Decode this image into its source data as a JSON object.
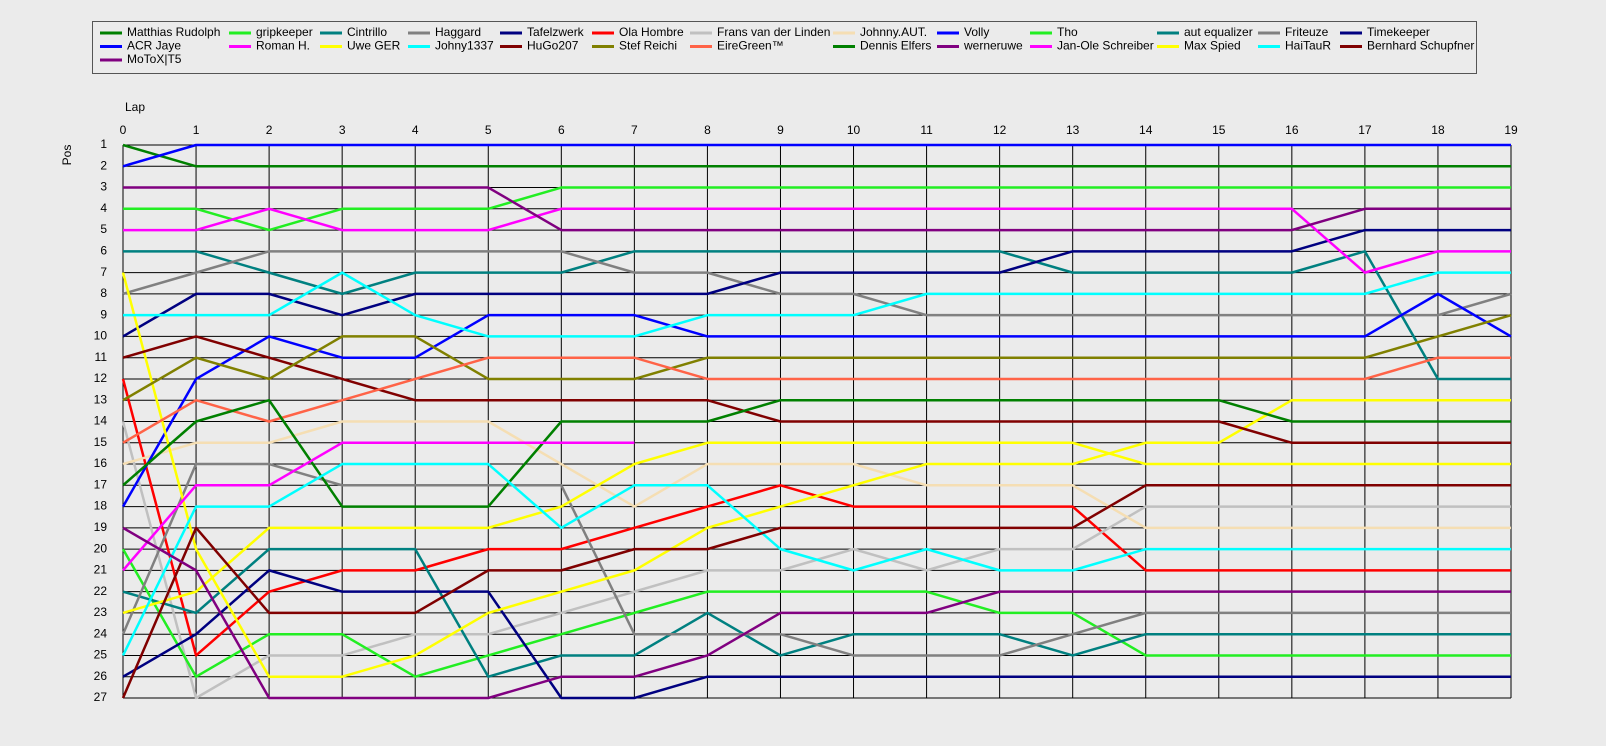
{
  "chart_data": {
    "type": "line",
    "x_label": "Lap",
    "y_label": "Pos",
    "x": [
      0,
      1,
      2,
      3,
      4,
      5,
      6,
      7,
      8,
      9,
      10,
      11,
      12,
      13,
      14,
      15,
      16,
      17,
      18,
      19
    ],
    "xlim": [
      0,
      19
    ],
    "xticks": [
      0,
      1,
      2,
      3,
      4,
      5,
      6,
      7,
      8,
      9,
      10,
      11,
      12,
      13,
      14,
      15,
      16,
      17,
      18,
      19
    ],
    "ylim": [
      27,
      1
    ],
    "yticks": [
      1,
      2,
      3,
      4,
      5,
      6,
      7,
      8,
      9,
      10,
      11,
      12,
      13,
      14,
      15,
      16,
      17,
      18,
      19,
      20,
      21,
      22,
      23,
      24,
      25,
      26,
      27
    ],
    "grid": true,
    "legend": "top",
    "series": [
      {
        "name": "Matthias  Rudolph",
        "color": "#008000",
        "values": [
          1,
          2,
          2,
          2,
          2,
          2,
          2,
          2,
          2,
          2,
          2,
          2,
          2,
          2,
          2,
          2,
          2,
          2,
          2,
          2
        ]
      },
      {
        "name": "gripkeeper",
        "color": "#22ee22",
        "values": [
          4,
          4,
          5,
          4,
          4,
          4,
          3,
          3,
          3,
          3,
          3,
          3,
          3,
          3,
          3,
          3,
          3,
          3,
          3,
          3
        ]
      },
      {
        "name": "Cintrillo",
        "color": "#008080",
        "values": [
          6,
          6,
          7,
          8,
          7,
          7,
          7,
          6,
          6,
          6,
          6,
          6,
          6,
          7,
          7,
          7,
          7,
          6,
          12,
          12
        ]
      },
      {
        "name": "Haggard",
        "color": "#808080",
        "values": [
          8,
          7,
          6,
          6,
          6,
          6,
          6,
          7,
          7,
          8,
          8,
          9,
          9,
          9,
          9,
          9,
          9,
          9,
          9,
          8
        ]
      },
      {
        "name": "Tafelzwerk",
        "color": "#000080",
        "values": [
          10,
          8,
          8,
          9,
          8,
          8,
          8,
          8,
          8,
          7,
          7,
          7,
          7,
          6,
          6,
          6,
          6,
          5,
          5,
          5
        ]
      },
      {
        "name": "Ola Hombre",
        "color": "#ff0000",
        "values": [
          12,
          25,
          22,
          21,
          21,
          20,
          20,
          19,
          18,
          17,
          18,
          18,
          18,
          18,
          21,
          21,
          21,
          21,
          21,
          21
        ]
      },
      {
        "name": "Frans  van der Linden",
        "color": "#c0c0c0",
        "values": [
          14,
          27,
          25,
          25,
          24,
          24,
          23,
          22,
          21,
          21,
          20,
          21,
          20,
          20,
          18,
          18,
          18,
          18,
          18,
          18
        ]
      },
      {
        "name": "Johnny.AUT.",
        "color": "#f5deb3",
        "values": [
          16,
          15,
          15,
          14,
          14,
          14,
          16,
          18,
          16,
          16,
          16,
          17,
          17,
          17,
          19,
          19,
          19,
          19,
          19,
          19
        ]
      },
      {
        "name": "Volly",
        "color": "#0000ff",
        "values": [
          2,
          1,
          1,
          1,
          1,
          1,
          1,
          1,
          1,
          1,
          1,
          1,
          1,
          1,
          1,
          1,
          1,
          1,
          1,
          1
        ]
      },
      {
        "name": "Tho",
        "color": "#22ee22",
        "values": [
          20,
          26,
          24,
          24,
          26,
          25,
          24,
          23,
          22,
          22,
          22,
          22,
          23,
          23,
          25,
          25,
          25,
          25,
          25,
          25
        ]
      },
      {
        "name": "aut equalizer",
        "color": "#008080",
        "values": [
          22,
          23,
          20,
          20,
          20,
          26,
          25,
          25,
          23,
          25,
          24,
          24,
          24,
          25,
          24,
          24,
          24,
          24,
          24,
          24
        ]
      },
      {
        "name": "Friteuze",
        "color": "#808080",
        "values": [
          24,
          16,
          16,
          17,
          17,
          17,
          17,
          24,
          24,
          24,
          25,
          25,
          25,
          24,
          23,
          23,
          23,
          23,
          23,
          23
        ]
      },
      {
        "name": "Timekeeper",
        "color": "#000080",
        "values": [
          26,
          24,
          21,
          22,
          22,
          22,
          27,
          27,
          26,
          26,
          26,
          26,
          26,
          26,
          26,
          26,
          26,
          26,
          26,
          26
        ]
      },
      {
        "name": "ACR Jaye",
        "color": "#0000ff",
        "values": [
          18,
          12,
          10,
          11,
          11,
          9,
          9,
          9,
          10,
          10,
          10,
          10,
          10,
          10,
          10,
          10,
          10,
          10,
          8,
          10
        ]
      },
      {
        "name": "Roman H.",
        "color": "#ff00ff",
        "values": [
          5,
          5,
          4,
          5,
          5,
          5,
          4,
          4,
          4,
          4,
          4,
          4,
          4,
          4,
          4,
          4,
          4,
          7,
          6,
          6
        ]
      },
      {
        "name": "Uwe GER",
        "color": "#ffff00",
        "values": [
          7,
          20,
          26,
          26,
          25,
          23,
          22,
          21,
          19,
          18,
          17,
          16,
          16,
          16,
          15,
          15,
          13,
          13,
          13,
          13
        ]
      },
      {
        "name": "Johny1337",
        "color": "#00ffff",
        "values": [
          9,
          9,
          9,
          7,
          9,
          10,
          10,
          10,
          9,
          9,
          9,
          8,
          8,
          8,
          8,
          8,
          8,
          8,
          7,
          7
        ]
      },
      {
        "name": "HuGo207",
        "color": "#800000",
        "values": [
          11,
          10,
          11,
          12,
          13,
          13,
          13,
          13,
          13,
          14,
          14,
          14,
          14,
          14,
          14,
          14,
          15,
          15,
          15,
          15
        ]
      },
      {
        "name": "Stef Reichi",
        "color": "#808000",
        "values": [
          13,
          11,
          12,
          10,
          10,
          12,
          12,
          12,
          11,
          11,
          11,
          11,
          11,
          11,
          11,
          11,
          11,
          11,
          10,
          9
        ]
      },
      {
        "name": "EireGreen™",
        "color": "#ff6347",
        "values": [
          15,
          13,
          14,
          13,
          12,
          11,
          11,
          11,
          12,
          12,
          12,
          12,
          12,
          12,
          12,
          12,
          12,
          12,
          11,
          11
        ]
      },
      {
        "name": "Dennis Elfers",
        "color": "#008000",
        "values": [
          17,
          14,
          13,
          18,
          18,
          18,
          14,
          14,
          14,
          13,
          13,
          13,
          13,
          13,
          13,
          13,
          14,
          14,
          14,
          14
        ]
      },
      {
        "name": "werneruwe",
        "color": "#800080",
        "values": [
          3,
          3,
          3,
          3,
          3,
          3,
          5,
          5,
          5,
          5,
          5,
          5,
          5,
          5,
          5,
          5,
          5,
          4,
          4,
          4
        ]
      },
      {
        "name": "Jan-Ole Schreiber",
        "color": "#ff00ff",
        "values": [
          21,
          17,
          17,
          15,
          15,
          15,
          15,
          15,
          null,
          null,
          null,
          null,
          null,
          null,
          null,
          null,
          null,
          null,
          null,
          null
        ]
      },
      {
        "name": "Max Spied",
        "color": "#ffff00",
        "values": [
          23,
          22,
          19,
          19,
          19,
          19,
          18,
          16,
          15,
          15,
          15,
          15,
          15,
          15,
          16,
          16,
          16,
          16,
          16,
          16
        ]
      },
      {
        "name": "HaiTauR",
        "color": "#00ffff",
        "values": [
          25,
          18,
          18,
          16,
          16,
          16,
          19,
          17,
          17,
          20,
          21,
          20,
          21,
          21,
          20,
          20,
          20,
          20,
          20,
          20
        ]
      },
      {
        "name": "Bernhard Schupfner",
        "color": "#800000",
        "values": [
          27,
          19,
          23,
          23,
          23,
          21,
          21,
          20,
          20,
          19,
          19,
          19,
          19,
          19,
          17,
          17,
          17,
          17,
          17,
          17
        ]
      },
      {
        "name": "MoToX|T5",
        "color": "#800080",
        "values": [
          19,
          21,
          27,
          27,
          27,
          27,
          26,
          26,
          25,
          23,
          23,
          23,
          22,
          22,
          22,
          22,
          22,
          22,
          22,
          22
        ]
      }
    ]
  }
}
